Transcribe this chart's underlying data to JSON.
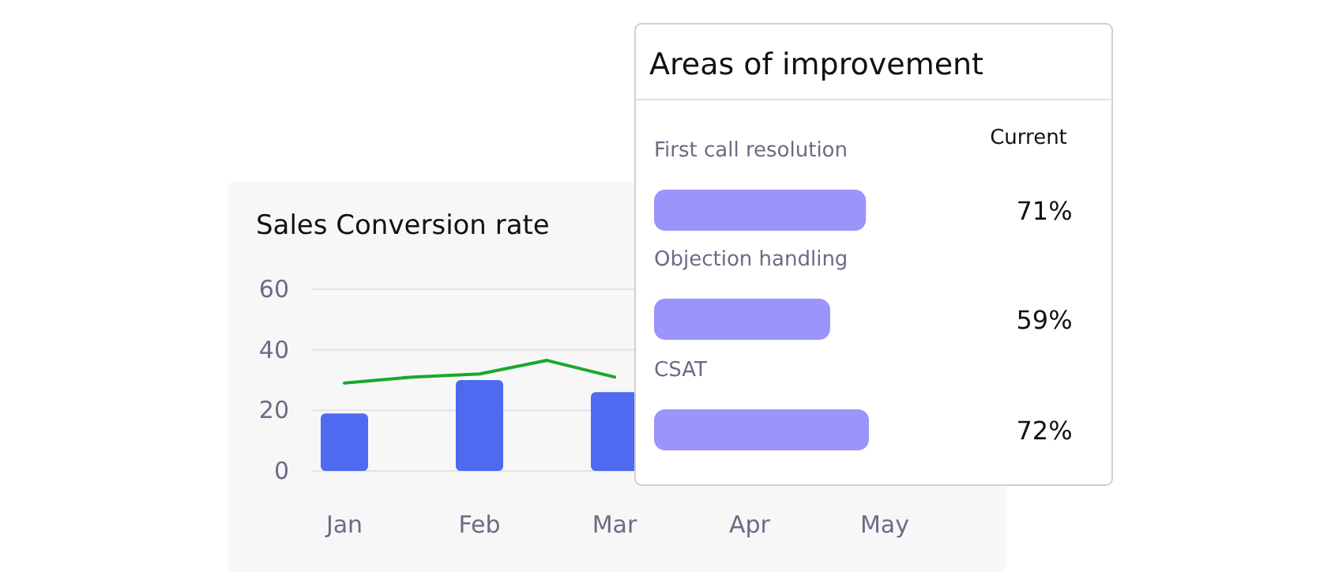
{
  "chart_data": [
    {
      "type": "bar",
      "title": "Sales Conversion rate",
      "categories": [
        "Jan",
        null,
        "Feb",
        null,
        "Mar",
        null,
        "Apr",
        null,
        "May"
      ],
      "ylim": [
        0,
        60
      ],
      "yticks": [
        0,
        20,
        40,
        60
      ],
      "grid": "y",
      "series": [
        {
          "color": "#4f6af0",
          "values": [
            19,
            null,
            30,
            null,
            26,
            null,
            null,
            null,
            null
          ]
        },
        {
          "type": "line",
          "color": "#1aa82a",
          "values": [
            29,
            31,
            32,
            36.5,
            31,
            null,
            null,
            null,
            null
          ]
        }
      ]
    },
    {
      "type": "bar",
      "orientation": "horizontal",
      "title": "Areas of improvement",
      "categories": [
        "First call resolution",
        "Objection handling",
        "CSAT"
      ],
      "values": [
        71,
        59,
        72
      ],
      "value_labels": [
        "71%",
        "59%",
        "72%"
      ],
      "color": "#9b94fb",
      "annotations": [
        "Current"
      ]
    }
  ]
}
